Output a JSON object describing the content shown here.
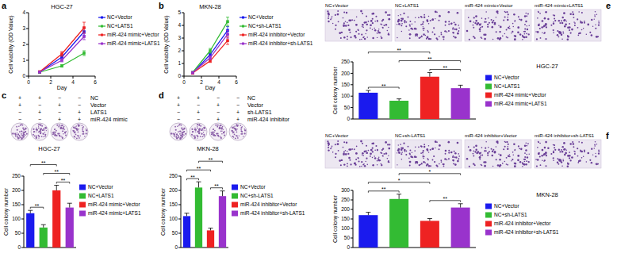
{
  "chart_data": [
    {
      "type": "line",
      "annotations": [
        "a",
        "HGC-27"
      ],
      "x_label": "Day",
      "y_label": "Cell viability (OD Value)",
      "x": [
        1,
        3,
        5
      ],
      "xlim": [
        0,
        6
      ],
      "xticks": [
        0,
        2,
        4,
        6
      ],
      "ylim": [
        0,
        4
      ],
      "yticks": [
        0,
        1,
        2,
        3,
        4
      ],
      "legend": "right",
      "series": [
        {
          "name": "NC+Vector",
          "color": "#1a1aee",
          "values": [
            0.25,
            1.2,
            2.8
          ],
          "errors": [
            0.05,
            0.12,
            0.25
          ]
        },
        {
          "name": "NC+LATS1",
          "color": "#33bb33",
          "values": [
            0.25,
            0.65,
            1.45
          ],
          "errors": [
            0.04,
            0.08,
            0.15
          ]
        },
        {
          "name": "miR-424 mimic+Vector",
          "color": "#ee2222",
          "values": [
            0.28,
            1.4,
            3.05
          ],
          "errors": [
            0.05,
            0.15,
            0.35
          ]
        },
        {
          "name": "miR-424 mimic+LATS1",
          "color": "#9933cc",
          "values": [
            0.26,
            1.0,
            2.5
          ],
          "errors": [
            0.04,
            0.1,
            0.2
          ]
        }
      ]
    },
    {
      "type": "line",
      "annotations": [
        "b",
        "MKN-28"
      ],
      "x_label": "Day",
      "y_label": "Cell viability (OD Value)",
      "x": [
        1,
        3,
        5
      ],
      "xlim": [
        0,
        6
      ],
      "xticks": [
        0,
        2,
        4,
        6
      ],
      "ylim": [
        0,
        5
      ],
      "yticks": [
        0,
        1,
        2,
        3,
        4,
        5
      ],
      "legend": "right",
      "series": [
        {
          "name": "NC+Vector",
          "color": "#1a1aee",
          "values": [
            0.25,
            1.7,
            3.6
          ],
          "errors": [
            0.05,
            0.15,
            0.3
          ]
        },
        {
          "name": "NC+sh-LATS1",
          "color": "#33bb33",
          "values": [
            0.3,
            2.0,
            4.3
          ],
          "errors": [
            0.05,
            0.18,
            0.35
          ]
        },
        {
          "name": "miR-424 inhibitor+Vector",
          "color": "#ee2222",
          "values": [
            0.25,
            1.2,
            2.8
          ],
          "errors": [
            0.04,
            0.12,
            0.3
          ]
        },
        {
          "name": "miR-424 inhibitor+sh-LATS1",
          "color": "#9933cc",
          "values": [
            0.28,
            1.45,
            3.3
          ],
          "errors": [
            0.05,
            0.14,
            0.3
          ]
        }
      ]
    },
    {
      "type": "bar",
      "annotations": [
        "c",
        "HGC-27"
      ],
      "y_label": "Cell colony number",
      "condition_table": {
        "rows": [
          {
            "label": "NC",
            "marks": [
              "+",
              "+",
              "−",
              "−"
            ]
          },
          {
            "label": "Vector",
            "marks": [
              "+",
              "−",
              "+",
              "−"
            ]
          },
          {
            "label": "LATS1",
            "marks": [
              "−",
              "+",
              "−",
              "+"
            ]
          },
          {
            "label": "miR-424 mimic",
            "marks": [
              "−",
              "−",
              "+",
              "+"
            ]
          }
        ]
      },
      "categories": [
        "NC+Vector",
        "NC+LATS1",
        "miR-424 mimic+Vector",
        "miR-424 mimic+LATS1"
      ],
      "values": [
        120,
        70,
        200,
        140
      ],
      "errors": [
        10,
        10,
        18,
        15
      ],
      "colors": [
        "#1a1aee",
        "#33bb33",
        "#ee2222",
        "#9933cc"
      ],
      "ylim": [
        0,
        250
      ],
      "yticks": [
        0,
        50,
        100,
        150,
        200,
        250
      ],
      "tick_labels": "y",
      "legend": "right",
      "significance": [
        {
          "pair": [
            0,
            1
          ],
          "label": "**"
        },
        {
          "pair": [
            2,
            3
          ],
          "label": "**"
        },
        {
          "pair": [
            1,
            3
          ],
          "label": "**"
        },
        {
          "pair": [
            0,
            2
          ],
          "label": "**"
        }
      ]
    },
    {
      "type": "bar",
      "annotations": [
        "d",
        "MKN-28"
      ],
      "y_label": "Cell colony number",
      "condition_table": {
        "rows": [
          {
            "label": "NC",
            "marks": [
              "+",
              "+",
              "−",
              "−"
            ]
          },
          {
            "label": "Vector",
            "marks": [
              "+",
              "−",
              "+",
              "−"
            ]
          },
          {
            "label": "sh-LATS1",
            "marks": [
              "−",
              "+",
              "−",
              "+"
            ]
          },
          {
            "label": "miR-424 inhibitor",
            "marks": [
              "−",
              "−",
              "+",
              "+"
            ]
          }
        ]
      },
      "categories": [
        "NC+Vector",
        "NC+sh-LATS1",
        "miR-424 inhibitor+Vector",
        "miR-424 inhibitor+sh-LATS1"
      ],
      "values": [
        110,
        210,
        60,
        180
      ],
      "errors": [
        10,
        20,
        8,
        18
      ],
      "colors": [
        "#1a1aee",
        "#33bb33",
        "#ee2222",
        "#9933cc"
      ],
      "ylim": [
        0,
        250
      ],
      "yticks": [
        0,
        50,
        100,
        150,
        200,
        250
      ],
      "tick_labels": "y",
      "legend": "right",
      "significance": [
        {
          "pair": [
            0,
            1
          ],
          "label": "**"
        },
        {
          "pair": [
            2,
            3
          ],
          "label": "**"
        },
        {
          "pair": [
            0,
            2
          ],
          "label": "**"
        },
        {
          "pair": [
            1,
            3
          ],
          "label": "**"
        }
      ]
    },
    {
      "type": "bar",
      "annotations": [
        "e",
        "HGC-27"
      ],
      "y_label": "Cell colony number",
      "categories": [
        "NC+Vector",
        "NC+LATS1",
        "miR-424 mimic+Vector",
        "miR-424 mimic+LATS1"
      ],
      "values": [
        115,
        80,
        185,
        135
      ],
      "errors": [
        10,
        8,
        18,
        13
      ],
      "colors": [
        "#1a1aee",
        "#33bb33",
        "#ee2222",
        "#9933cc"
      ],
      "ylim": [
        0,
        250
      ],
      "yticks": [
        0,
        50,
        100,
        150,
        200,
        250
      ],
      "tick_labels": "y",
      "legend": "right",
      "significance": [
        {
          "pair": [
            0,
            1
          ],
          "label": "**"
        },
        {
          "pair": [
            2,
            3
          ],
          "label": "**"
        },
        {
          "pair": [
            1,
            3
          ],
          "label": "**"
        },
        {
          "pair": [
            0,
            2
          ],
          "label": "**"
        }
      ]
    },
    {
      "type": "bar",
      "annotations": [
        "f",
        "MKN-28"
      ],
      "y_label": "Cell colony number",
      "categories": [
        "NC+Vector",
        "NC+sh-LATS1",
        "miR-424 inhibitor+Vector",
        "miR-424 inhibitor+sh-LATS1"
      ],
      "values": [
        170,
        255,
        140,
        210
      ],
      "errors": [
        15,
        25,
        12,
        20
      ],
      "colors": [
        "#1a1aee",
        "#33bb33",
        "#ee2222",
        "#9933cc"
      ],
      "ylim": [
        0,
        300
      ],
      "yticks": [
        0,
        50,
        100,
        150,
        200,
        250,
        300
      ],
      "tick_labels": "y",
      "legend": "right",
      "significance": [
        {
          "pair": [
            0,
            1
          ],
          "label": "**"
        },
        {
          "pair": [
            2,
            3
          ],
          "label": "**"
        },
        {
          "pair": [
            0,
            2
          ],
          "label": "*"
        },
        {
          "pair": [
            1,
            3
          ],
          "label": "*"
        }
      ]
    }
  ]
}
